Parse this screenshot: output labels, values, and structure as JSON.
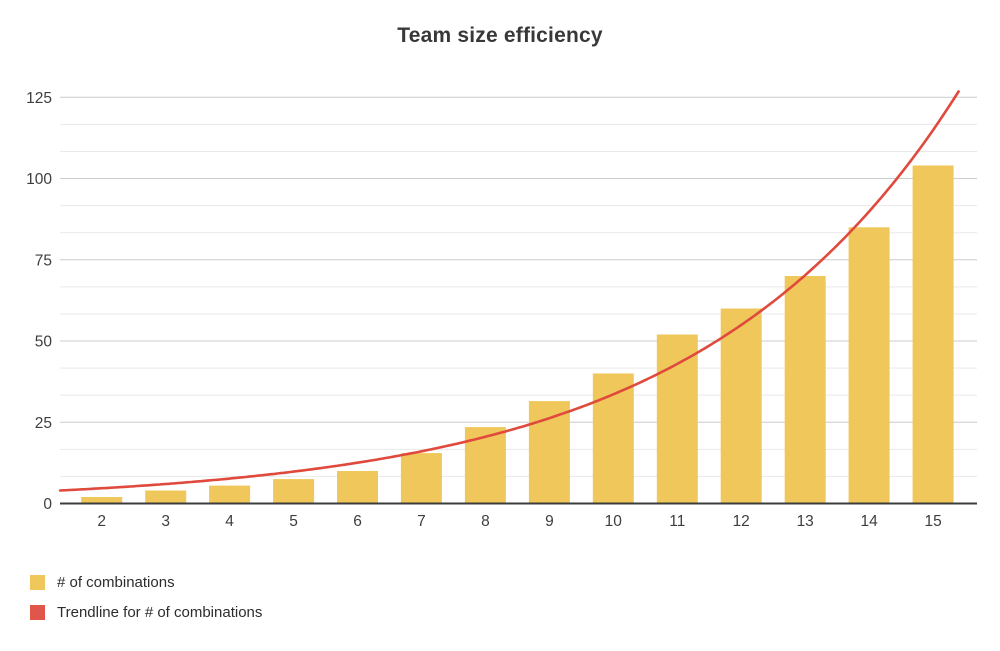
{
  "title": "Team size efficiency",
  "chart_data": {
    "type": "bar",
    "title": "Team size efficiency",
    "xlabel": "",
    "ylabel": "",
    "categories": [
      "2",
      "3",
      "4",
      "5",
      "6",
      "7",
      "8",
      "9",
      "10",
      "11",
      "12",
      "13",
      "14",
      "15"
    ],
    "series": [
      {
        "name": "# of combinations",
        "type": "bar",
        "color": "#EFC75A",
        "values": [
          2,
          4,
          5.5,
          7.5,
          10,
          15.5,
          23.5,
          31.5,
          40,
          52,
          60,
          70,
          85,
          104
        ]
      }
    ],
    "trendline": {
      "name": "Trendline for # of combinations",
      "color": "#E04A3D",
      "shape": "exponential",
      "start_x": 1.35,
      "end_x": 15.4,
      "start_value": 4,
      "growth_rate": 0.246
    },
    "ylim": [
      0,
      125
    ],
    "y_major_ticks": [
      0,
      25,
      50,
      75,
      100,
      125
    ],
    "y_minor_divisions_per_major": 3,
    "grid": true,
    "legend_position": "bottom-left"
  },
  "legend": {
    "items": [
      {
        "label": "# of combinations",
        "color": "#EFC75A"
      },
      {
        "label": "Trendline for # of combinations",
        "color": "#E0564A"
      }
    ]
  },
  "colors": {
    "background": "#ffffff",
    "bar": "#EFC75A",
    "trend": "#E04A3D",
    "axis_line": "#3c3c3c",
    "grid_major": "#cccccc",
    "grid_minor": "#e9e9e9",
    "title_text": "#383838",
    "tick_text": "#3e3e3e",
    "legend_text": "#2d2d2d"
  }
}
